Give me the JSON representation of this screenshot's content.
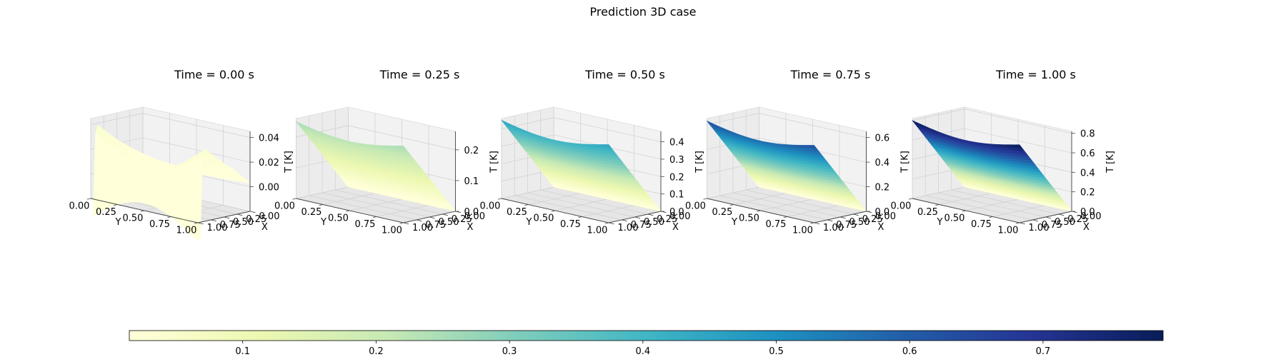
{
  "figure": {
    "title": "Prediction 3D case"
  },
  "chart_data": [
    {
      "type": "surface3d",
      "title": "Time = 0.00 s",
      "xlabel": "X",
      "ylabel": "Y",
      "zlabel": "T [K]",
      "x_ticks": [
        "0.00",
        "0.25",
        "0.50",
        "0.75",
        "1.00"
      ],
      "y_ticks": [
        "0.00",
        "0.25",
        "0.50",
        "0.75",
        "1.00"
      ],
      "z_ticks": [
        "0.00",
        "0.02",
        "0.04"
      ],
      "xlim": [
        0,
        1
      ],
      "ylim": [
        0,
        1
      ],
      "zlim": [
        -0.02,
        0.045
      ],
      "time": 0.0,
      "max_T": 0.045
    },
    {
      "type": "surface3d",
      "title": "Time = 0.25 s",
      "xlabel": "X",
      "ylabel": "Y",
      "zlabel": "T [K]",
      "x_ticks": [
        "0.00",
        "0.25",
        "0.50",
        "0.75",
        "1.00"
      ],
      "y_ticks": [
        "0.00",
        "0.25",
        "0.50",
        "0.75",
        "1.00"
      ],
      "z_ticks": [
        "0.0",
        "0.1",
        "0.2"
      ],
      "xlim": [
        0,
        1
      ],
      "ylim": [
        0,
        1
      ],
      "zlim": [
        0,
        0.26
      ],
      "time": 0.25,
      "max_T": 0.25
    },
    {
      "type": "surface3d",
      "title": "Time = 0.50 s",
      "xlabel": "X",
      "ylabel": "Y",
      "zlabel": "T [K]",
      "x_ticks": [
        "0.00",
        "0.25",
        "0.50",
        "0.75",
        "1.00"
      ],
      "y_ticks": [
        "0.00",
        "0.25",
        "0.50",
        "0.75",
        "1.00"
      ],
      "z_ticks": [
        "0.0",
        "0.1",
        "0.2",
        "0.3",
        "0.4"
      ],
      "xlim": [
        0,
        1
      ],
      "ylim": [
        0,
        1
      ],
      "zlim": [
        0,
        0.46
      ],
      "time": 0.5,
      "max_T": 0.45
    },
    {
      "type": "surface3d",
      "title": "Time = 0.75 s",
      "xlabel": "X",
      "ylabel": "Y",
      "zlabel": "T [K]",
      "x_ticks": [
        "0.00",
        "0.25",
        "0.50",
        "0.75",
        "1.00"
      ],
      "y_ticks": [
        "0.00",
        "0.25",
        "0.50",
        "0.75",
        "1.00"
      ],
      "z_ticks": [
        "0.0",
        "0.2",
        "0.4",
        "0.6"
      ],
      "xlim": [
        0,
        1
      ],
      "ylim": [
        0,
        1
      ],
      "zlim": [
        0,
        0.65
      ],
      "time": 0.75,
      "max_T": 0.63
    },
    {
      "type": "surface3d",
      "title": "Time = 1.00 s",
      "xlabel": "X",
      "ylabel": "Y",
      "zlabel": "T [K]",
      "x_ticks": [
        "0.00",
        "0.25",
        "0.50",
        "0.75",
        "1.00"
      ],
      "y_ticks": [
        "0.00",
        "0.25",
        "0.50",
        "0.75",
        "1.00"
      ],
      "z_ticks": [
        "0.0",
        "0.2",
        "0.4",
        "0.6",
        "0.8"
      ],
      "xlim": [
        0,
        1
      ],
      "ylim": [
        0,
        1
      ],
      "zlim": [
        0,
        0.82
      ],
      "time": 1.0,
      "max_T": 0.8
    }
  ],
  "colorbar": {
    "colormap": "YlGnBu",
    "range": [
      0.015,
      0.79
    ],
    "ticks": [
      "0.1",
      "0.2",
      "0.3",
      "0.4",
      "0.5",
      "0.6",
      "0.7"
    ],
    "colors": [
      "#ffffd9",
      "#edf8b1",
      "#c7e9b4",
      "#7fcdbb",
      "#41b6c4",
      "#1d91c0",
      "#225ea8",
      "#253494",
      "#081d58"
    ]
  }
}
